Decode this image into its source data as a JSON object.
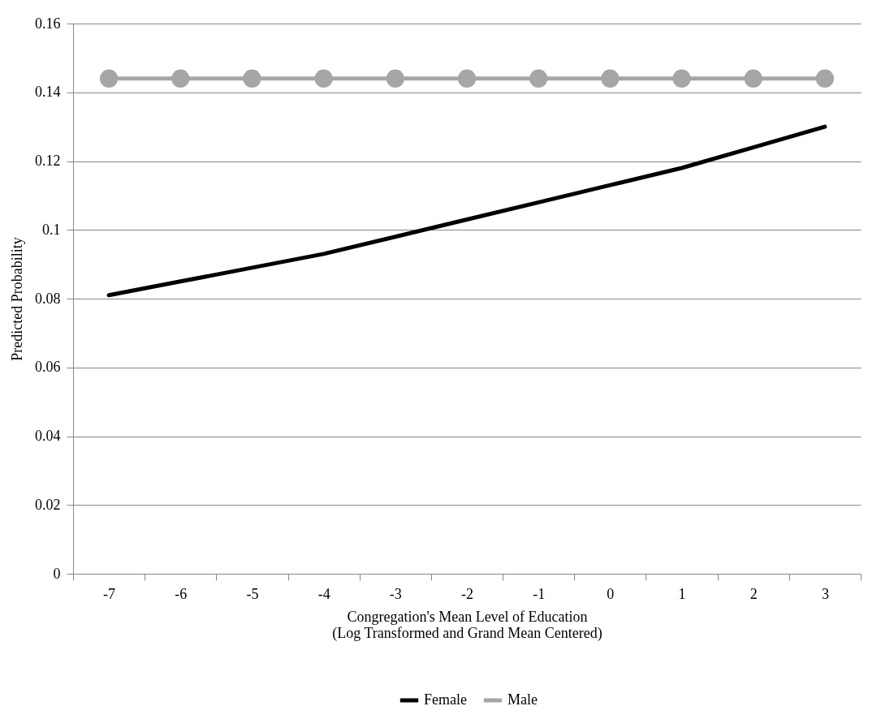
{
  "chart_data": {
    "type": "line",
    "xlabel": "Congregation's Mean Level of Education\n(Log Transformed and Grand Mean Centered)",
    "ylabel": "Predicted Probability",
    "categories": [
      "-7",
      "-6",
      "-5",
      "-4",
      "-3",
      "-2",
      "-1",
      "0",
      "1",
      "2",
      "3"
    ],
    "series": [
      {
        "name": "Female",
        "color": "#000000",
        "marker": "none",
        "values": [
          0.081,
          0.085,
          0.089,
          0.093,
          0.098,
          0.103,
          0.108,
          0.113,
          0.118,
          0.124,
          0.13
        ]
      },
      {
        "name": "Male",
        "color": "#a6a6a6",
        "marker": "circle",
        "values": [
          0.144,
          0.144,
          0.144,
          0.144,
          0.144,
          0.144,
          0.144,
          0.144,
          0.144,
          0.144,
          0.144
        ]
      }
    ],
    "ylim": [
      0,
      0.16
    ],
    "yticks": [
      0,
      0.02,
      0.04,
      0.06,
      0.08,
      0.1,
      0.12,
      0.14,
      0.16
    ],
    "grid": "y",
    "legend": "bottom"
  }
}
